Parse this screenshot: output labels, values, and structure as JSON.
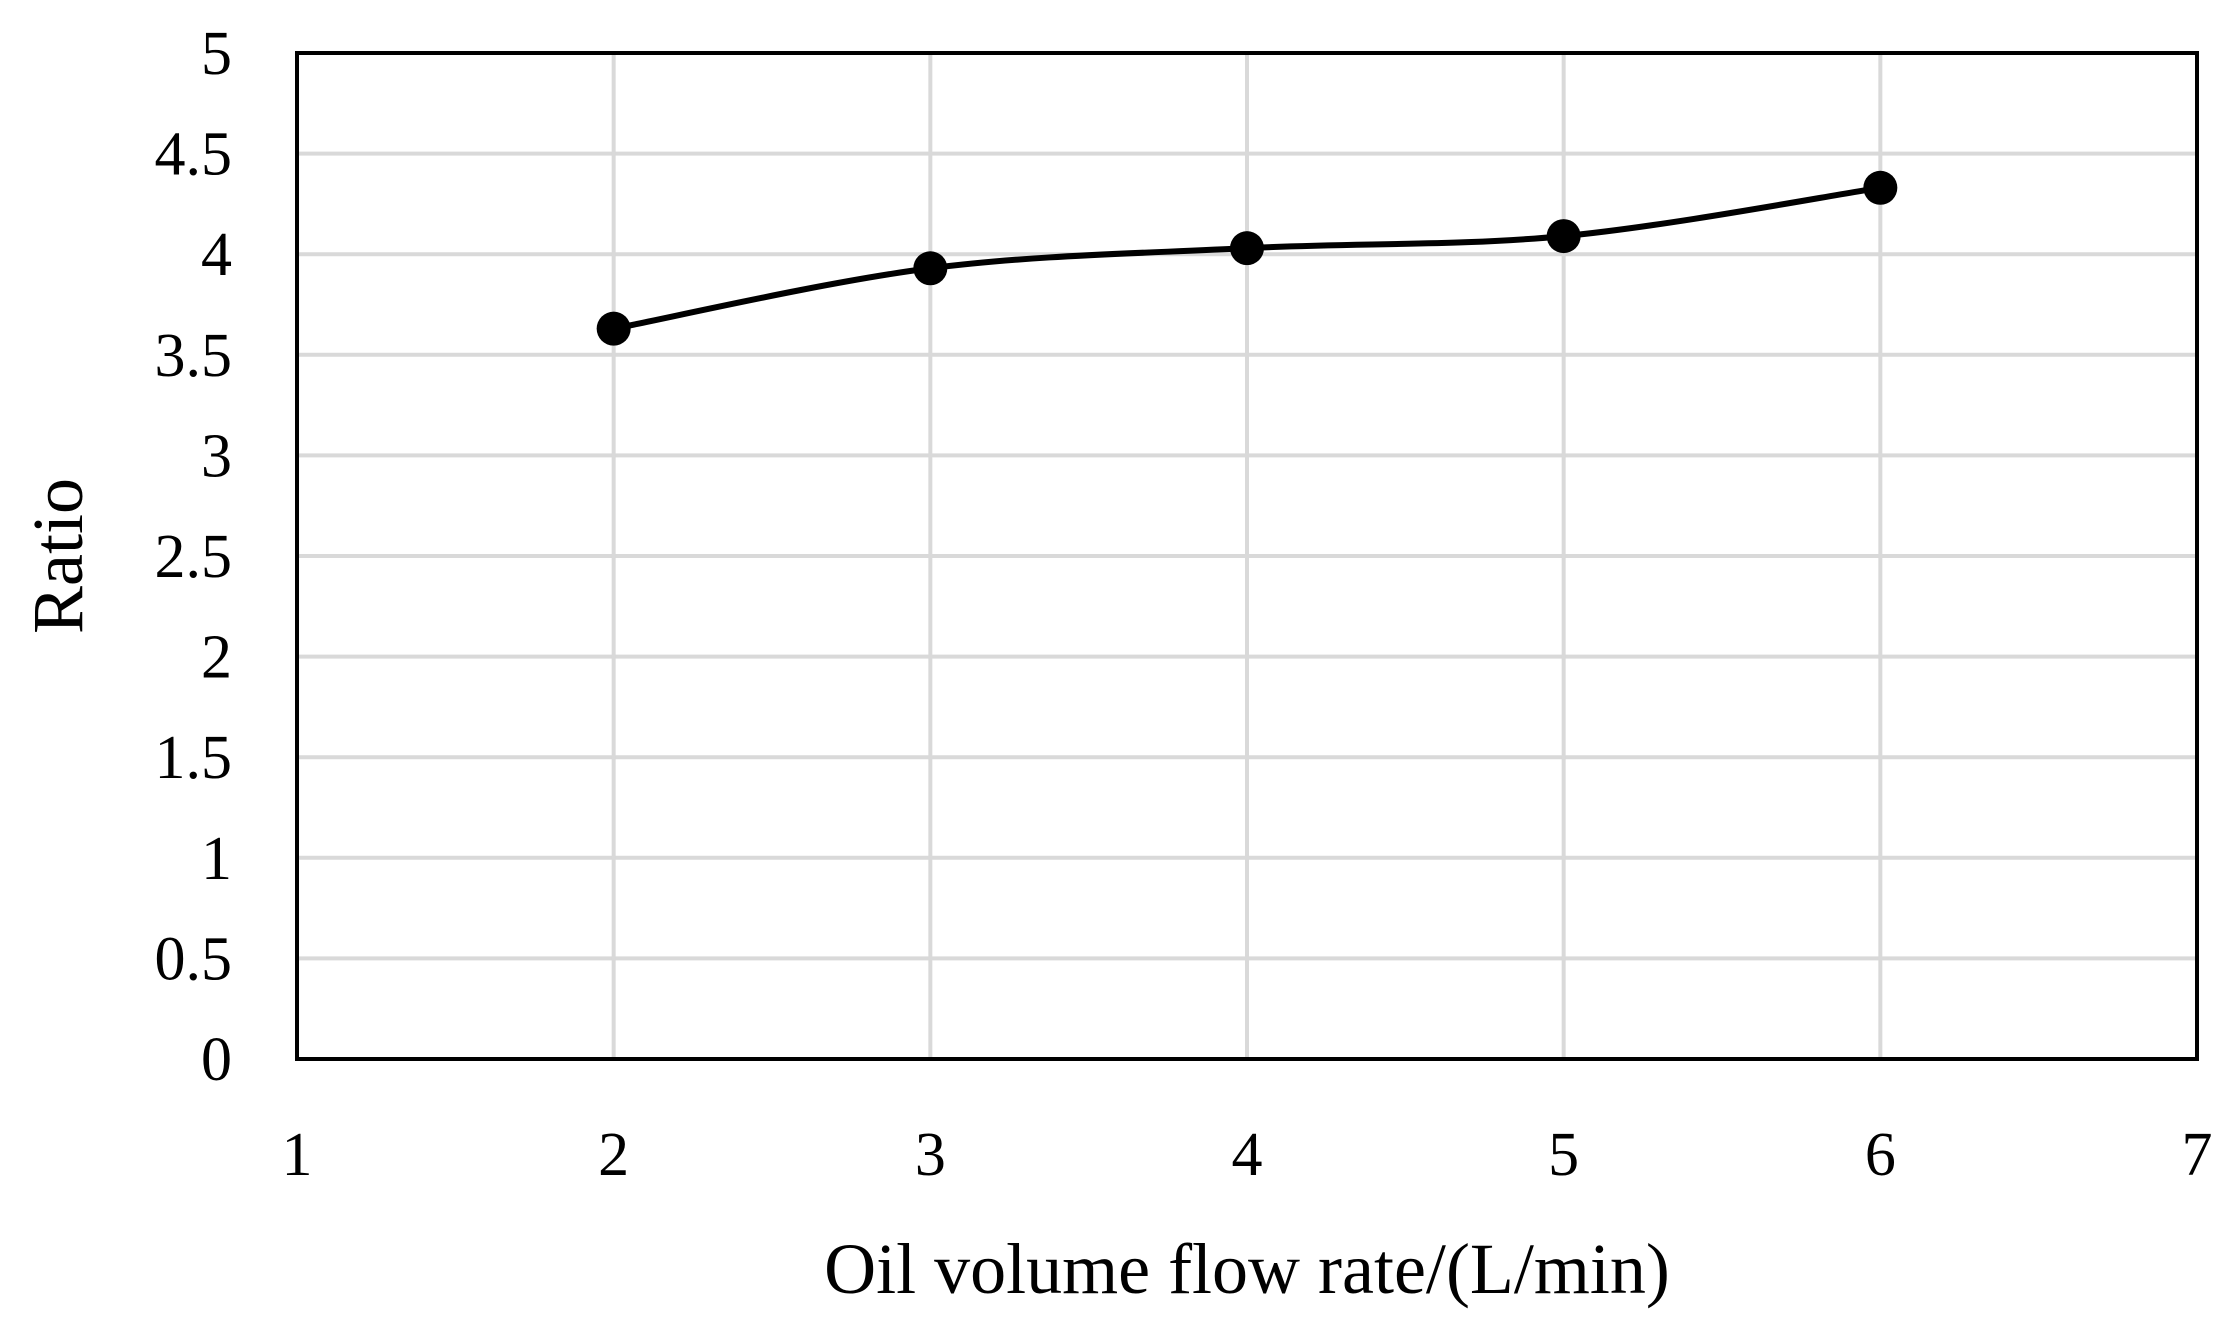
{
  "chart_data": {
    "type": "line",
    "title": "",
    "xlabel": "Oil volume flow rate/(L/min)",
    "ylabel": "Ratio",
    "xlim": [
      1,
      7
    ],
    "ylim": [
      0,
      5
    ],
    "x_ticks": [
      1,
      2,
      3,
      4,
      5,
      6,
      7
    ],
    "y_ticks": [
      0,
      0.5,
      1,
      1.5,
      2,
      2.5,
      3,
      3.5,
      4,
      4.5,
      5
    ],
    "grid": true,
    "legend": "none",
    "series": [
      {
        "x": [
          2,
          3,
          4,
          5,
          6
        ],
        "values": [
          3.63,
          3.93,
          4.03,
          4.09,
          4.33
        ],
        "color": "#000000",
        "marker": "circle",
        "smooth": true
      }
    ]
  }
}
